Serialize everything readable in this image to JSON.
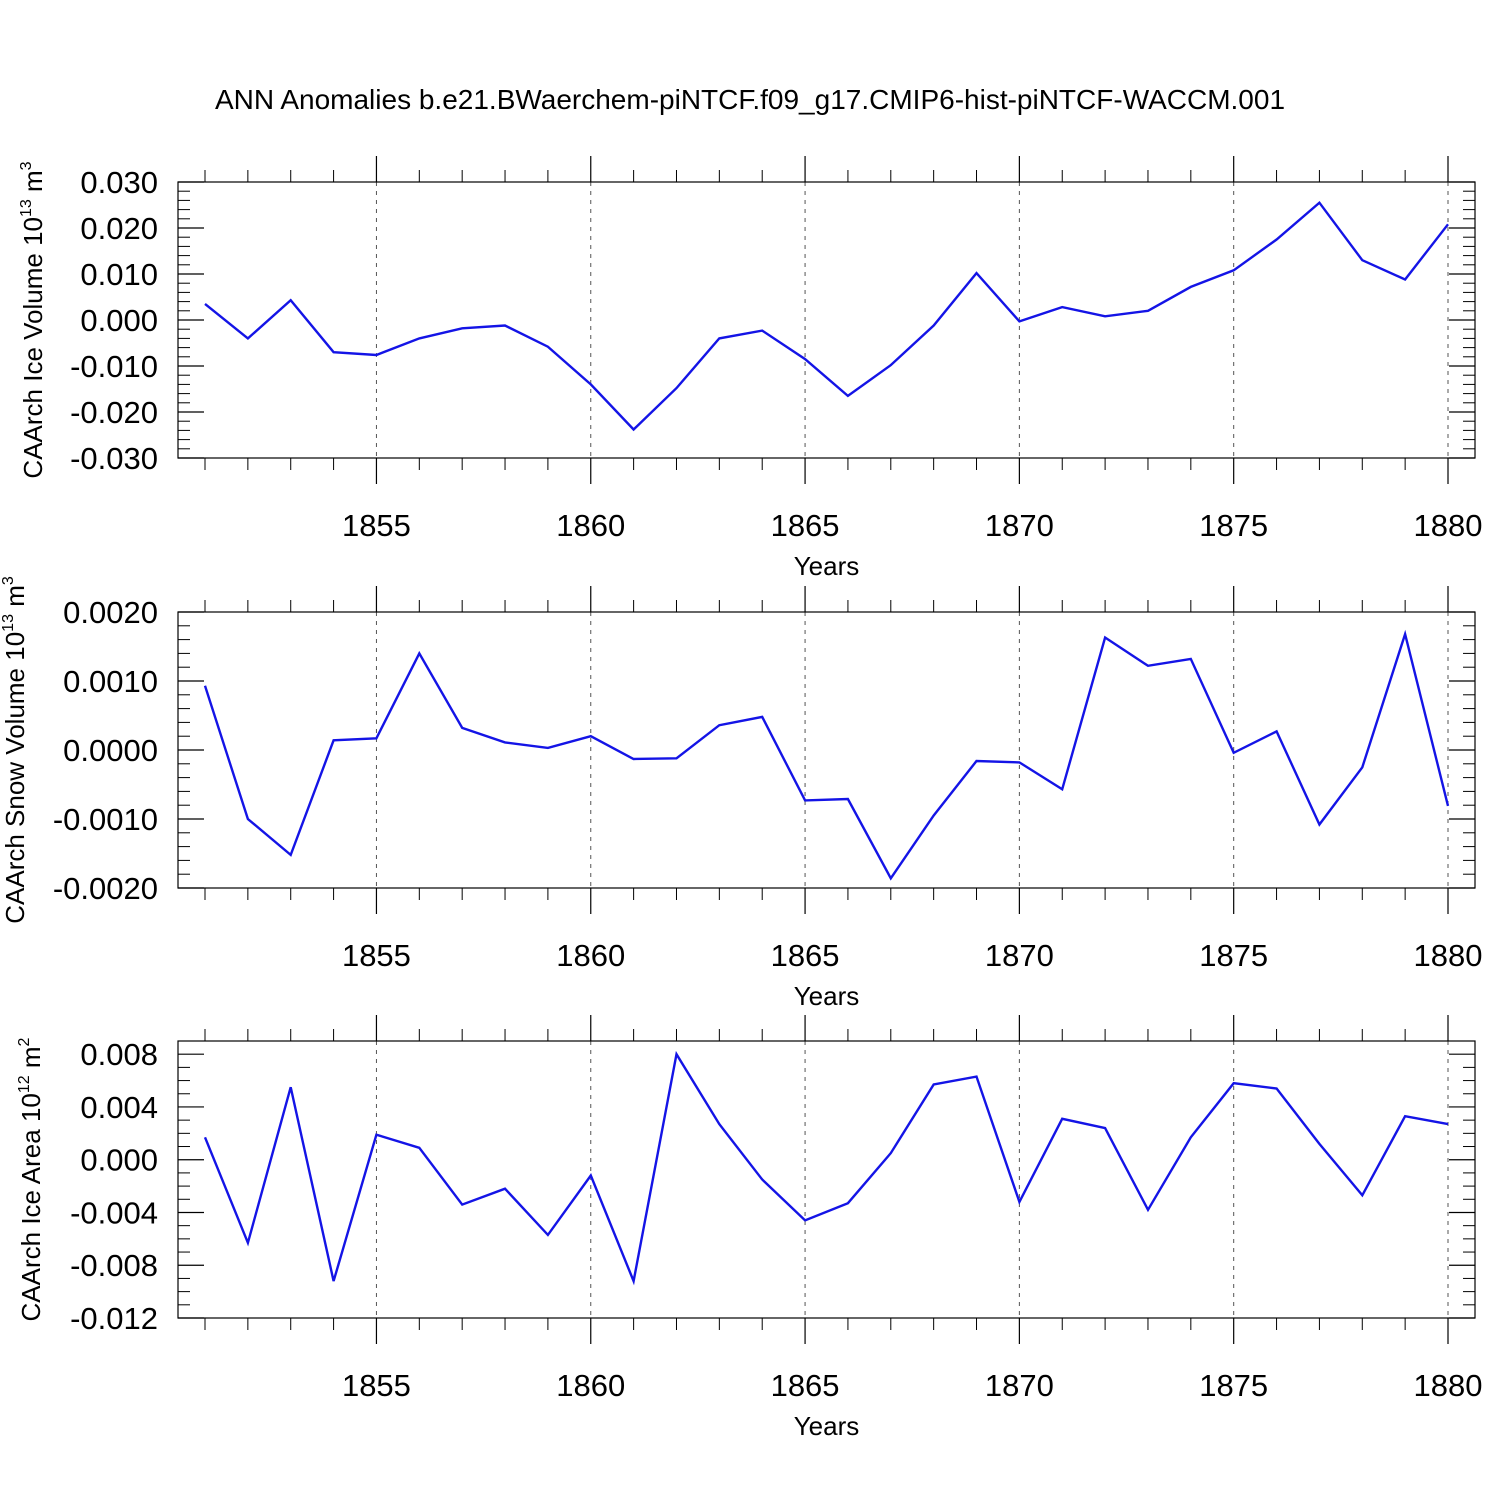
{
  "figure": {
    "title": "ANN Anomalies b.e21.BWaerchem-piNTCF.f09_g17.CMIP6-hist-piNTCF-WACCM.001"
  },
  "chart_data": [
    {
      "type": "line",
      "title": "",
      "xlabel": "Years",
      "ylabel": "CAArch Ice Volume 10",
      "ylabel_exp": "13",
      "ylabel_unit": " m",
      "ylabel_unit_exp": "3",
      "xlim": [
        1851,
        1880
      ],
      "ylim": [
        -0.03,
        0.03
      ],
      "x_ticks": [
        1855,
        1860,
        1865,
        1870,
        1875,
        1880
      ],
      "y_ticks": [
        0.03,
        0.02,
        0.01,
        0.0,
        -0.01,
        -0.02,
        -0.03
      ],
      "y_tick_labels": [
        "0.030",
        "0.020",
        "0.010",
        "0.000",
        "-0.010",
        "-0.020",
        "-0.030"
      ],
      "y_minor_step": 0.002,
      "grid": "vertical dashed at major x ticks",
      "line_color": "#1414e6",
      "series": [
        {
          "x": [
            1851,
            1852,
            1853,
            1854,
            1855,
            1856,
            1857,
            1858,
            1859,
            1860,
            1861,
            1862,
            1863,
            1864,
            1865,
            1866,
            1867,
            1868,
            1869,
            1870,
            1871,
            1872,
            1873,
            1874,
            1875,
            1876,
            1877,
            1878,
            1879,
            1880
          ],
          "values": [
            0.0035,
            -0.004,
            0.0043,
            -0.007,
            -0.0076,
            -0.004,
            -0.0018,
            -0.0012,
            -0.0058,
            -0.014,
            -0.0238,
            -0.0148,
            -0.004,
            -0.0023,
            -0.0085,
            -0.0165,
            -0.0098,
            -0.0012,
            0.0102,
            -0.0003,
            0.0028,
            0.0008,
            0.002,
            0.0072,
            0.0108,
            0.0175,
            0.0255,
            0.013,
            0.0088,
            0.0208
          ]
        }
      ]
    },
    {
      "type": "line",
      "title": "",
      "xlabel": "Years",
      "ylabel": "CAArch Snow Volume 10",
      "ylabel_exp": "13",
      "ylabel_unit": " m",
      "ylabel_unit_exp": "3",
      "xlim": [
        1851,
        1880
      ],
      "ylim": [
        -0.002,
        0.002
      ],
      "x_ticks": [
        1855,
        1860,
        1865,
        1870,
        1875,
        1880
      ],
      "y_ticks": [
        0.002,
        0.001,
        0.0,
        -0.001,
        -0.002
      ],
      "y_tick_labels": [
        "0.0020",
        "0.0010",
        "0.0000",
        "-0.0010",
        "-0.0020"
      ],
      "y_minor_step": 0.0002,
      "grid": "vertical dashed at major x ticks",
      "line_color": "#1414e6",
      "series": [
        {
          "x": [
            1851,
            1852,
            1853,
            1854,
            1855,
            1856,
            1857,
            1858,
            1859,
            1860,
            1861,
            1862,
            1863,
            1864,
            1865,
            1866,
            1867,
            1868,
            1869,
            1870,
            1871,
            1872,
            1873,
            1874,
            1875,
            1876,
            1877,
            1878,
            1879,
            1880
          ],
          "values": [
            0.00093,
            -0.001,
            -0.00152,
            0.00014,
            0.00017,
            0.0014,
            0.00032,
            0.00011,
            3e-05,
            0.0002,
            -0.00013,
            -0.00012,
            0.00036,
            0.00048,
            -0.00073,
            -0.00071,
            -0.00186,
            -0.00095,
            -0.00016,
            -0.00018,
            -0.00057,
            0.00163,
            0.00122,
            0.00132,
            -4e-05,
            0.00027,
            -0.00108,
            -0.00025,
            0.00168,
            -0.00081
          ]
        }
      ]
    },
    {
      "type": "line",
      "title": "",
      "xlabel": "Years",
      "ylabel": "CAArch Ice Area 10",
      "ylabel_exp": "12",
      "ylabel_unit": " m",
      "ylabel_unit_exp": "2",
      "xlim": [
        1851,
        1880
      ],
      "ylim": [
        -0.012,
        0.009
      ],
      "x_ticks": [
        1855,
        1860,
        1865,
        1870,
        1875,
        1880
      ],
      "y_ticks": [
        0.008,
        0.004,
        0.0,
        -0.004,
        -0.008,
        -0.012
      ],
      "y_tick_labels": [
        "0.008",
        "0.004",
        "0.000",
        "-0.004",
        "-0.008",
        "-0.012"
      ],
      "y_minor_step": 0.001,
      "grid": "vertical dashed at major x ticks",
      "line_color": "#1414e6",
      "series": [
        {
          "x": [
            1851,
            1852,
            1853,
            1854,
            1855,
            1856,
            1857,
            1858,
            1859,
            1860,
            1861,
            1862,
            1863,
            1864,
            1865,
            1866,
            1867,
            1868,
            1869,
            1870,
            1871,
            1872,
            1873,
            1874,
            1875,
            1876,
            1877,
            1878,
            1879,
            1880
          ],
          "values": [
            0.0017,
            -0.0063,
            0.0055,
            -0.0092,
            0.0019,
            0.0009,
            -0.0034,
            -0.0022,
            -0.0057,
            -0.0012,
            -0.0092,
            0.008,
            0.0027,
            -0.0015,
            -0.0046,
            -0.0033,
            0.0005,
            0.0057,
            0.0063,
            -0.0032,
            0.0031,
            0.0024,
            -0.0038,
            0.0017,
            0.0058,
            0.0054,
            0.0012,
            -0.0027,
            0.0033,
            0.0027
          ]
        }
      ]
    }
  ]
}
